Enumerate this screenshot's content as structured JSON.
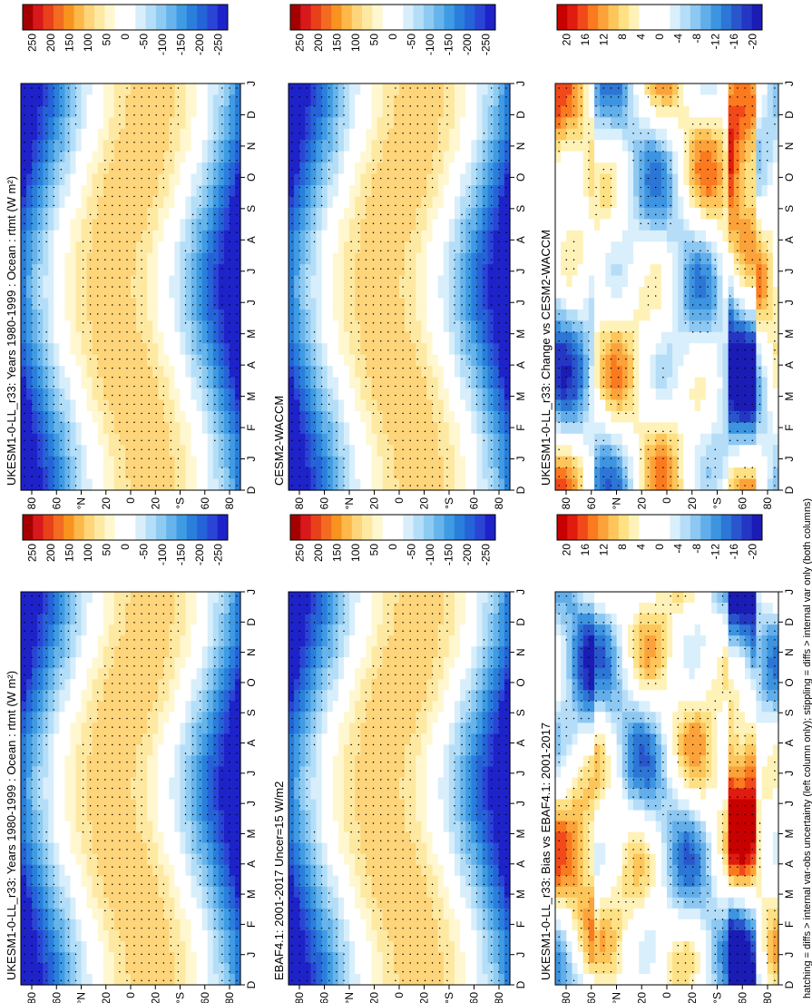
{
  "footer": "hatching = diffs > internal var-obs uncertainty (left column only); stippling = diffs > internal var only (both columns)",
  "colors": {
    "abs": [
      "#a50000",
      "#d7191c",
      "#e8401a",
      "#f26b21",
      "#f8931f",
      "#fdb84a",
      "#fed57a",
      "#fee9a3",
      "#fff7cf",
      "#ffffff",
      "#ffffff",
      "#d8eefb",
      "#b4def8",
      "#8ecbf2",
      "#66b4eb",
      "#3f9be3",
      "#2a7fdc",
      "#2563d8",
      "#2a45d5",
      "#1e22c9"
    ],
    "diff": [
      "#c80000",
      "#e01b10",
      "#f2491a",
      "#fb7a1f",
      "#fba33a",
      "#fdc55a",
      "#fee184",
      "#fff2b8",
      "#ffffff",
      "#ffffff",
      "#ffffff",
      "#d9effc",
      "#b5ddf8",
      "#8dc8f2",
      "#62aeea",
      "#3d94e0",
      "#2c76d6",
      "#2956cd",
      "#2536c4",
      "#1a1cb5"
    ]
  },
  "chart_data": [
    {
      "id": "ukesm-hist",
      "type": "heatmap",
      "title": "UKESM1-0-LL_r33: Years 1980-1999 : Ocean : rtmt (W m²)",
      "x_ticks": [
        "D",
        "J",
        "F",
        "M",
        "A",
        "M",
        "J",
        "J",
        "A",
        "S",
        "O",
        "N",
        "D",
        "J"
      ],
      "y_ticks": [
        "80",
        "60",
        "°N",
        "20",
        "0",
        "20",
        "°S",
        "60",
        "80"
      ],
      "colorbar_labels": [
        "250",
        "200",
        "150",
        "100",
        "50",
        "0",
        "-50",
        "-100",
        "-150",
        "-200",
        "-250"
      ],
      "scale": "abs"
    },
    {
      "id": "ceres",
      "type": "heatmap",
      "title": "EBAF4.1: 2001-2017 Uncer=15 W/m2",
      "x_ticks": [
        "D",
        "J",
        "F",
        "M",
        "A",
        "M",
        "J",
        "J",
        "A",
        "S",
        "O",
        "N",
        "D",
        "J"
      ],
      "y_ticks": [
        "80",
        "60",
        "°N",
        "20",
        "0",
        "20",
        "°S",
        "60",
        "80"
      ],
      "colorbar_labels": [
        "250",
        "200",
        "150",
        "100",
        "50",
        "0",
        "-50",
        "-100",
        "-150",
        "-200",
        "-250"
      ],
      "scale": "abs"
    },
    {
      "id": "bias",
      "type": "heatmap",
      "title": "UKESM1-0-LL_r33: Bias vs EBAF4.1: 2001-2017",
      "x_ticks": [
        "D",
        "J",
        "F",
        "M",
        "A",
        "M",
        "J",
        "J",
        "A",
        "S",
        "O",
        "N",
        "D",
        "J"
      ],
      "y_ticks": [
        "80",
        "60",
        "°N",
        "20",
        "0",
        "20",
        "°S",
        "60",
        "80"
      ],
      "colorbar_labels": [
        "20",
        "16",
        "12",
        "8",
        "4",
        "0",
        "-4",
        "-8",
        "-12",
        "-16",
        "-20"
      ],
      "scale": "diff"
    },
    {
      "id": "ukesm-hist-2",
      "type": "heatmap",
      "title": "UKESM1-0-LL_r33: Years 1980-1999 : Ocean : rtmt (W m²)",
      "x_ticks": [
        "D",
        "J",
        "F",
        "M",
        "A",
        "M",
        "J",
        "J",
        "A",
        "S",
        "O",
        "N",
        "D",
        "J"
      ],
      "y_ticks": [
        "80",
        "60",
        "°N",
        "20",
        "0",
        "20",
        "°S",
        "60",
        "80"
      ],
      "colorbar_labels": [
        "250",
        "200",
        "150",
        "100",
        "50",
        "0",
        "-50",
        "-100",
        "-150",
        "-200",
        "-250"
      ],
      "scale": "abs"
    },
    {
      "id": "cesm",
      "type": "heatmap",
      "title": "CESM2-WACCM",
      "x_ticks": [
        "D",
        "J",
        "F",
        "M",
        "A",
        "M",
        "J",
        "J",
        "A",
        "S",
        "O",
        "N",
        "D",
        "J"
      ],
      "y_ticks": [
        "80",
        "60",
        "°N",
        "20",
        "0",
        "20",
        "°S",
        "60",
        "80"
      ],
      "colorbar_labels": [
        "250",
        "200",
        "150",
        "100",
        "50",
        "0",
        "-50",
        "-100",
        "-150",
        "-200",
        "-250"
      ],
      "scale": "abs"
    },
    {
      "id": "change",
      "type": "heatmap",
      "title": "UKESM1-0-LL_r33: Change vs CESM2-WACCM",
      "x_ticks": [
        "D",
        "J",
        "F",
        "M",
        "A",
        "M",
        "J",
        "J",
        "A",
        "S",
        "O",
        "N",
        "D",
        "J"
      ],
      "y_ticks": [
        "80",
        "60",
        "°N",
        "20",
        "0",
        "20",
        "°S",
        "60",
        "80"
      ],
      "colorbar_labels": [
        "20",
        "16",
        "12",
        "8",
        "4",
        "0",
        "-4",
        "-8",
        "-12",
        "-16",
        "-20"
      ],
      "scale": "diff"
    }
  ]
}
